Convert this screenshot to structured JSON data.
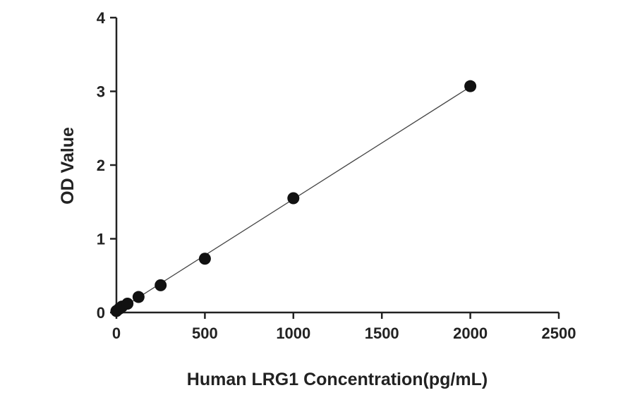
{
  "chart_data": {
    "type": "scatter",
    "title": "",
    "xlabel": "Human LRG1 Concentration(pg/mL)",
    "ylabel": "OD Value",
    "xlim": [
      0,
      2500
    ],
    "ylim": [
      0,
      4
    ],
    "x_ticks": [
      "0",
      "500",
      "1000",
      "1500",
      "2000",
      "2500"
    ],
    "y_ticks": [
      "0",
      "1",
      "2",
      "3",
      "4"
    ],
    "grid": false,
    "legend": "none",
    "fit_line": "linear",
    "series": [
      {
        "x": [
          0,
          15.6,
          31.25,
          62.5,
          125,
          250,
          500,
          1000,
          2000
        ],
        "y": [
          0.02,
          0.05,
          0.08,
          0.12,
          0.21,
          0.37,
          0.73,
          1.55,
          3.07
        ]
      }
    ],
    "colors": {
      "marker": "#111111",
      "line": "#444444",
      "axis": "#222222"
    }
  }
}
